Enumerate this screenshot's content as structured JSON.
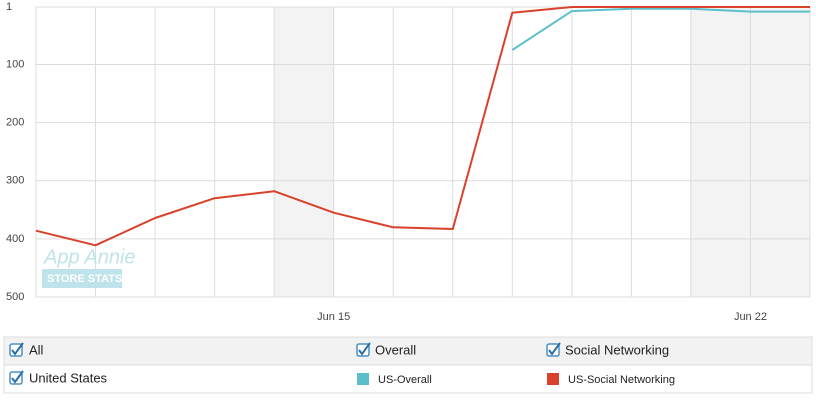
{
  "chart_data": {
    "type": "line",
    "categories": [
      null,
      null,
      null,
      null,
      null,
      "Jun 15",
      null,
      null,
      null,
      null,
      null,
      null,
      "Jun 22",
      null
    ],
    "series": [
      {
        "name": "US-Overall",
        "color": "#5bc0cc",
        "values": [
          null,
          null,
          null,
          null,
          null,
          null,
          null,
          null,
          75,
          8,
          4,
          4,
          9,
          9
        ]
      },
      {
        "name": "US-Social Networking",
        "color": "#d9412b",
        "values": [
          386,
          411,
          364,
          330,
          318,
          355,
          380,
          383,
          11,
          1,
          1,
          1,
          1,
          1
        ]
      }
    ],
    "ylim": [
      1,
      500
    ],
    "yticks": [
      1,
      100,
      200,
      300,
      400,
      500
    ],
    "y_inverted": true,
    "grid": true
  },
  "watermark": [
    "App Annie",
    "STORE STATS"
  ],
  "filters": [
    [
      "All",
      "Overall",
      "Social Networking"
    ],
    [
      "United States"
    ]
  ]
}
